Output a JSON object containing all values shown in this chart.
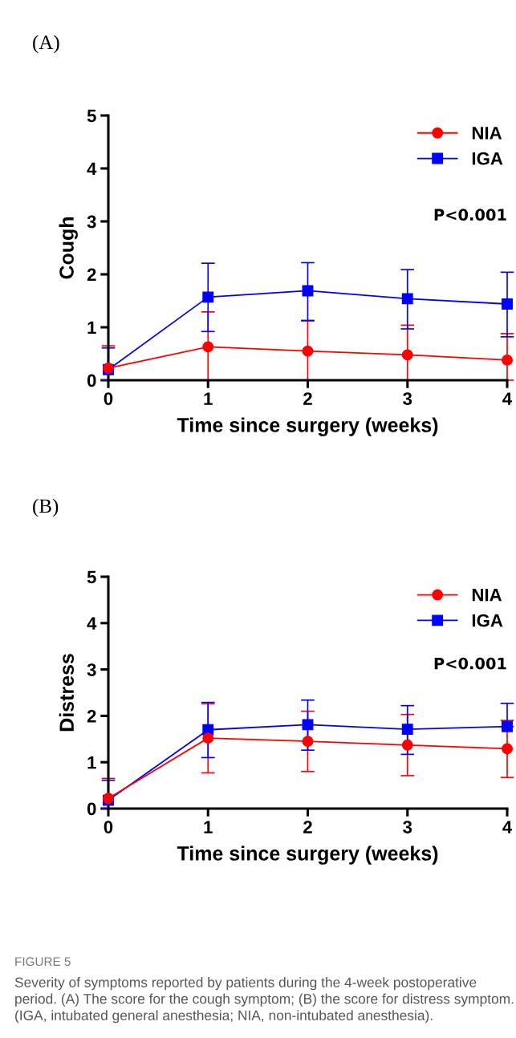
{
  "chart_data": [
    {
      "type": "line",
      "title": "(A)",
      "xlabel": "Time since surgery (weeks)",
      "ylabel": "Cough",
      "x": [
        0,
        1,
        2,
        3,
        4
      ],
      "xlim": [
        0,
        4
      ],
      "xticks": [
        0,
        1,
        2,
        3,
        4
      ],
      "ylim": [
        0,
        5
      ],
      "yticks": [
        0,
        1,
        2,
        3,
        4,
        5
      ],
      "grid": false,
      "legend": "top right",
      "annotations": [
        "P<0.001"
      ],
      "series": [
        {
          "name": "NIA",
          "color": "#ff0000",
          "marker": "circle",
          "values": [
            0.23,
            0.63,
            0.55,
            0.48,
            0.38
          ],
          "errors": [
            [
              0,
              0.65
            ],
            [
              0,
              1.29
            ],
            [
              0,
              1.12
            ],
            [
              0,
              1.04
            ],
            [
              0,
              0.88
            ]
          ]
        },
        {
          "name": "IGA",
          "color": "#0000ff",
          "marker": "square",
          "values": [
            0.2,
            1.57,
            1.69,
            1.54,
            1.44
          ],
          "errors": [
            [
              0,
              0.61
            ],
            [
              0.92,
              2.21
            ],
            [
              1.13,
              2.22
            ],
            [
              0.97,
              2.09
            ],
            [
              0.82,
              2.04
            ]
          ]
        }
      ]
    },
    {
      "type": "line",
      "title": "(B)",
      "xlabel": "Time since surgery (weeks)",
      "ylabel": "Distress",
      "x": [
        0,
        1,
        2,
        3,
        4
      ],
      "xlim": [
        0,
        4
      ],
      "xticks": [
        0,
        1,
        2,
        3,
        4
      ],
      "ylim": [
        0,
        5
      ],
      "yticks": [
        0,
        1,
        2,
        3,
        4,
        5
      ],
      "grid": false,
      "legend": "top right",
      "annotations": [
        "P<0.001",
        "FIGURE 5",
        "Severity of symptoms reported by patients during the 4-week postoperative period. (A) The score for the cough symptom; (B) the score for distress symptom. (IGA, intubated general anesthesia; NIA, non-intubated anesthesia)."
      ],
      "series": [
        {
          "name": "NIA",
          "color": "#ff0000",
          "marker": "circle",
          "values": [
            0.22,
            1.52,
            1.45,
            1.37,
            1.29
          ],
          "errors": [
            [
              0,
              0.65
            ],
            [
              0.77,
              2.26
            ],
            [
              0.8,
              2.1
            ],
            [
              0.71,
              2.03
            ],
            [
              0.67,
              1.9
            ]
          ]
        },
        {
          "name": "IGA",
          "color": "#0000ff",
          "marker": "square",
          "values": [
            0.18,
            1.7,
            1.81,
            1.71,
            1.77
          ],
          "errors": [
            [
              0,
              0.61
            ],
            [
              1.1,
              2.29
            ],
            [
              1.26,
              2.34
            ],
            [
              1.17,
              2.22
            ],
            [
              1.77,
              2.27
            ]
          ]
        }
      ]
    }
  ]
}
